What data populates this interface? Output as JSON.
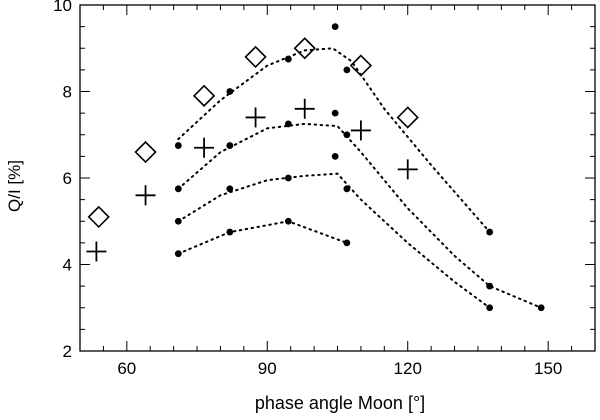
{
  "chart_data": {
    "type": "scatter",
    "title": "",
    "xlabel": "phase angle Moon [°]",
    "ylabel": "Q/I [%]",
    "xlim": [
      50,
      160
    ],
    "ylim": [
      2,
      10
    ],
    "xticks": [
      60,
      90,
      120,
      150
    ],
    "yticks": [
      2,
      4,
      6,
      8,
      10
    ],
    "x_minor_step": 5,
    "y_minor_step": 0.5,
    "grid": false,
    "legend": "none",
    "colors": {
      "marks": "#000000",
      "background": "#ffffff"
    },
    "series": [
      {
        "marker": "diamond",
        "points": [
          [
            54,
            5.1
          ],
          [
            64,
            6.6
          ],
          [
            76.5,
            7.9
          ],
          [
            87.5,
            8.8
          ],
          [
            98,
            9.0
          ],
          [
            110,
            8.6
          ],
          [
            120,
            7.4
          ]
        ]
      },
      {
        "marker": "plus",
        "points": [
          [
            53.5,
            4.3
          ],
          [
            64,
            5.6
          ],
          [
            76.5,
            6.7
          ],
          [
            87.5,
            7.4
          ],
          [
            98,
            7.6
          ],
          [
            110,
            7.1
          ],
          [
            120,
            6.2
          ]
        ]
      },
      {
        "marker": "dot",
        "dotted_line": true,
        "points": [
          [
            71,
            6.75
          ],
          [
            82,
            8.0
          ],
          [
            94.5,
            8.75
          ],
          [
            104.5,
            9.5
          ],
          [
            107,
            8.5
          ],
          [
            137.5,
            4.75
          ]
        ]
      },
      {
        "marker": "dot",
        "dotted_line": true,
        "points": [
          [
            71,
            5.75
          ],
          [
            82,
            6.75
          ],
          [
            94.5,
            7.25
          ],
          [
            104.5,
            7.5
          ],
          [
            107,
            7.0
          ],
          [
            137.5,
            3.5
          ],
          [
            148.5,
            3.0
          ]
        ]
      },
      {
        "marker": "dot",
        "dotted_line": true,
        "points": [
          [
            71,
            5.0
          ],
          [
            82,
            5.75
          ],
          [
            94.5,
            6.0
          ],
          [
            104.5,
            6.5
          ],
          [
            107,
            5.75
          ],
          [
            137.5,
            3.0
          ]
        ]
      },
      {
        "marker": "dot",
        "dotted_line": true,
        "points": [
          [
            71,
            4.25
          ],
          [
            82,
            4.75
          ],
          [
            94.5,
            5.0
          ],
          [
            107,
            4.5
          ]
        ]
      }
    ],
    "curves": [
      {
        "points": [
          [
            71,
            6.9
          ],
          [
            80,
            7.8
          ],
          [
            90,
            8.6
          ],
          [
            98,
            8.95
          ],
          [
            104,
            9.0
          ],
          [
            108,
            8.7
          ],
          [
            115,
            7.6
          ],
          [
            125,
            6.3
          ],
          [
            137.5,
            4.75
          ]
        ]
      },
      {
        "points": [
          [
            71,
            5.75
          ],
          [
            80,
            6.6
          ],
          [
            90,
            7.15
          ],
          [
            98,
            7.25
          ],
          [
            105,
            7.2
          ],
          [
            110,
            6.6
          ],
          [
            120,
            5.3
          ],
          [
            130,
            4.2
          ],
          [
            137.5,
            3.5
          ],
          [
            148.5,
            3.0
          ]
        ]
      },
      {
        "points": [
          [
            71,
            5.0
          ],
          [
            80,
            5.6
          ],
          [
            90,
            5.95
          ],
          [
            98,
            6.05
          ],
          [
            105,
            6.1
          ],
          [
            110,
            5.5
          ],
          [
            120,
            4.5
          ],
          [
            130,
            3.6
          ],
          [
            137.5,
            3.0
          ]
        ]
      },
      {
        "points": [
          [
            71,
            4.25
          ],
          [
            82,
            4.75
          ],
          [
            94.5,
            5.0
          ],
          [
            107,
            4.5
          ]
        ]
      }
    ]
  }
}
